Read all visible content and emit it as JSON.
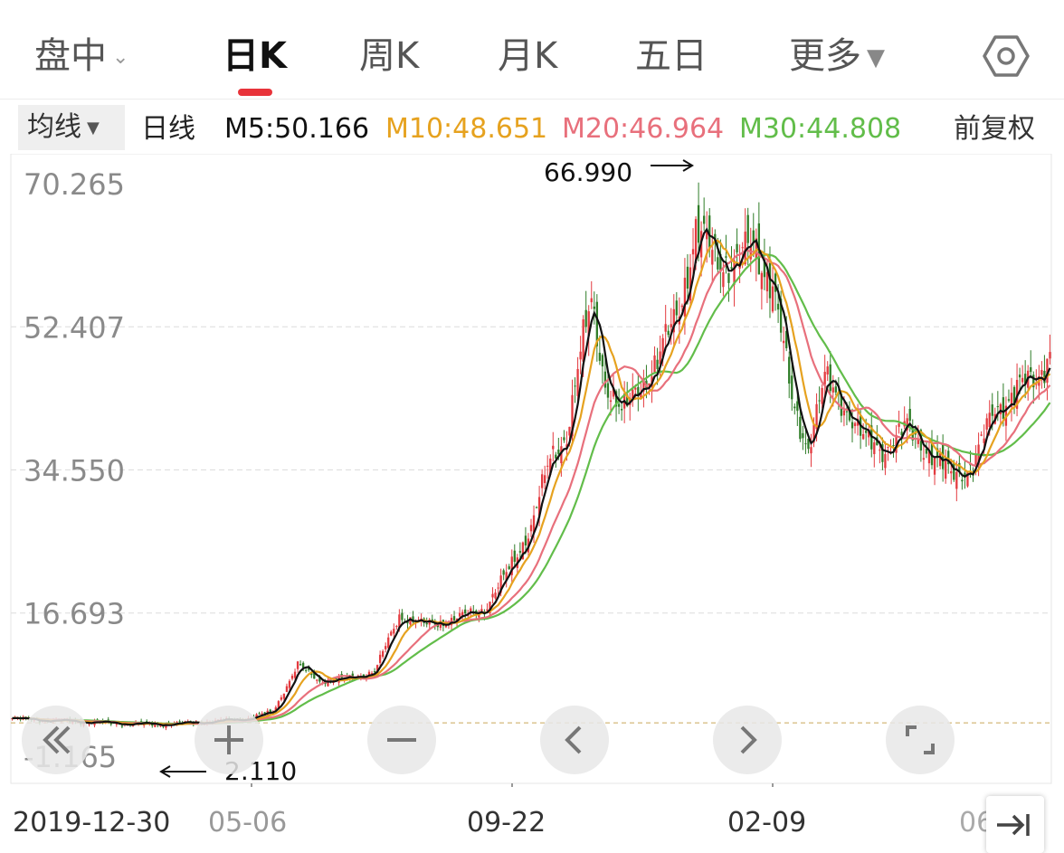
{
  "tabs": [
    {
      "label": "盘中",
      "has_caret": true
    },
    {
      "label": "日K",
      "active": true
    },
    {
      "label": "周K"
    },
    {
      "label": "月K"
    },
    {
      "label": "五日"
    },
    {
      "label": "更多",
      "has_caret": true
    }
  ],
  "settings_icon": "hexagon-settings-icon",
  "ma_bar": {
    "dropdown_label": "均线",
    "period_label": "日线",
    "m5": "M5:50.166",
    "m10": "M10:48.651",
    "m20": "M20:46.964",
    "m30": "M30:44.808",
    "adjust_label": "前复权"
  },
  "colors": {
    "accent_red": "#e8333a",
    "rise": "#e33a3f",
    "fall": "#2f7d28",
    "m5": "#111111",
    "m10": "#e6a21f",
    "m20": "#e8707c",
    "m30": "#62bd4a"
  },
  "controls": [
    "rewind-icon",
    "zoom-in-icon",
    "zoom-out-icon",
    "previous-icon",
    "next-icon",
    "fullscreen-icon"
  ],
  "end_button_icon": "jump-to-end-icon",
  "chart_data": {
    "type": "candlestick",
    "y_ticks": [
      "70.265",
      "52.407",
      "34.550",
      "16.693",
      "-1.165"
    ],
    "ylim": [
      -1.165,
      70.265
    ],
    "x_labels": [
      "2019-12-30",
      "05-06",
      "09-22",
      "02-09",
      "06"
    ],
    "grid": true,
    "max_marker": {
      "label": "66.990",
      "value": 66.99
    },
    "min_marker": {
      "label": "2.110",
      "value": 2.11
    },
    "reference_line": 3.0,
    "close_path": [
      [
        0,
        3.5
      ],
      [
        20,
        3.2
      ],
      [
        40,
        2.9
      ],
      [
        55,
        2.8
      ],
      [
        70,
        3.1
      ],
      [
        85,
        3.5
      ],
      [
        95,
        4.4
      ],
      [
        104,
        10.2
      ],
      [
        112,
        8.2
      ],
      [
        122,
        8.5
      ],
      [
        132,
        9.4
      ],
      [
        141,
        16.4
      ],
      [
        150,
        15.2
      ],
      [
        160,
        15.8
      ],
      [
        172,
        17.2
      ],
      [
        180,
        21.5
      ],
      [
        189,
        27.5
      ],
      [
        196,
        35.8
      ],
      [
        202,
        39.2
      ],
      [
        207,
        48.8
      ],
      [
        211,
        55.4
      ],
      [
        216,
        45.8
      ],
      [
        222,
        41.2
      ],
      [
        228,
        45.2
      ],
      [
        235,
        47.6
      ],
      [
        243,
        55.4
      ],
      [
        249,
        63.8
      ],
      [
        257,
        61.2
      ],
      [
        264,
        60.1
      ],
      [
        270,
        62.8
      ],
      [
        277,
        57.8
      ],
      [
        284,
        43.2
      ],
      [
        290,
        37.5
      ],
      [
        296,
        45.6
      ],
      [
        302,
        43.5
      ],
      [
        310,
        38.2
      ],
      [
        318,
        37.2
      ],
      [
        326,
        39.8
      ],
      [
        333,
        37.2
      ],
      [
        342,
        33.8
      ],
      [
        350,
        35.2
      ],
      [
        358,
        42.1
      ],
      [
        366,
        44.8
      ],
      [
        373,
        45.6
      ],
      [
        378,
        49.8
      ]
    ],
    "ma_params": {
      "m5": 5,
      "m10": 10,
      "m20": 20,
      "m30": 30
    }
  }
}
